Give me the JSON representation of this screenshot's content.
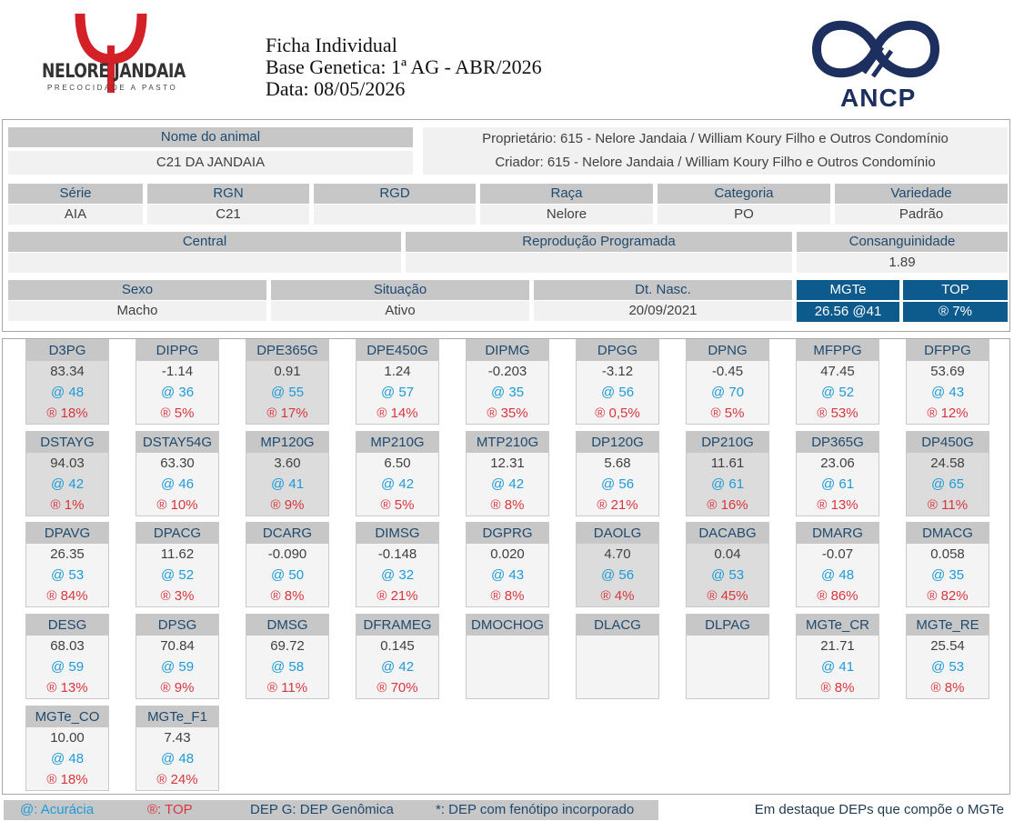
{
  "header": {
    "logo_left_text": "NELORE JANDAIA",
    "logo_left_slogan": "PRECOCIDADE A PASTO",
    "title": "Ficha Individual",
    "base": "Base Genetica: 1ª AG - ABR/2026",
    "date": "Data: 08/05/2026",
    "logo_right_text": "ANCP"
  },
  "animal": {
    "name_label": "Nome do animal",
    "name": "C21 DA JANDAIA",
    "owner": "Proprietário: 615 - Nelore Jandaia / William Koury Filho e Outros Condomínio",
    "breeder": "Criador: 615 - Nelore Jandaia / William Koury Filho e Outros Condomínio",
    "serie_label": "Série",
    "serie": "AIA",
    "rgn_label": "RGN",
    "rgn": "C21",
    "rgd_label": "RGD",
    "rgd": "",
    "raca_label": "Raça",
    "raca": "Nelore",
    "categoria_label": "Categoria",
    "categoria": "PO",
    "variedade_label": "Variedade",
    "variedade": "Padrão",
    "central_label": "Central",
    "central": "",
    "repro_label": "Reprodução Programada",
    "repro": "",
    "consang_label": "Consanguinidade",
    "consang": "1.89",
    "sexo_label": "Sexo",
    "sexo": "Macho",
    "situacao_label": "Situação",
    "situacao": "Ativo",
    "nasc_label": "Dt. Nasc.",
    "nasc": "20/09/2021",
    "mgte_label": "MGTe",
    "mgte": "26.56  @41",
    "top_label": "TOP",
    "top": "® 7%"
  },
  "deps": [
    {
      "name": "D3PG",
      "dep": "83.34",
      "acc": "@ 48",
      "top": "® 18%",
      "hl": true
    },
    {
      "name": "DIPPG",
      "dep": "-1.14",
      "acc": "@ 36",
      "top": "® 5%",
      "hl": false
    },
    {
      "name": "DPE365G",
      "dep": "0.91",
      "acc": "@ 55",
      "top": "® 17%",
      "hl": true
    },
    {
      "name": "DPE450G",
      "dep": "1.24",
      "acc": "@ 57",
      "top": "® 14%",
      "hl": false
    },
    {
      "name": "DIPMG",
      "dep": "-0.203",
      "acc": "@ 35",
      "top": "® 35%",
      "hl": false
    },
    {
      "name": "DPGG",
      "dep": "-3.12",
      "acc": "@ 56",
      "top": "® 0,5%",
      "hl": false
    },
    {
      "name": "DPNG",
      "dep": "-0.45",
      "acc": "@ 70",
      "top": "® 5%",
      "hl": false
    },
    {
      "name": "MFPPG",
      "dep": "47.45",
      "acc": "@ 52",
      "top": "® 53%",
      "hl": false
    },
    {
      "name": "DFPPG",
      "dep": "53.69",
      "acc": "@ 43",
      "top": "® 12%",
      "hl": false
    },
    {
      "name": "DSTAYG",
      "dep": "94.03",
      "acc": "@ 42",
      "top": "® 1%",
      "hl": true
    },
    {
      "name": "DSTAY54G",
      "dep": "63.30",
      "acc": "@ 46",
      "top": "® 10%",
      "hl": false
    },
    {
      "name": "MP120G",
      "dep": "3.60",
      "acc": "@ 41",
      "top": "® 9%",
      "hl": true
    },
    {
      "name": "MP210G",
      "dep": "6.50",
      "acc": "@ 42",
      "top": "® 5%",
      "hl": false
    },
    {
      "name": "MTP210G",
      "dep": "12.31",
      "acc": "@ 42",
      "top": "® 8%",
      "hl": false
    },
    {
      "name": "DP120G",
      "dep": "5.68",
      "acc": "@ 56",
      "top": "® 21%",
      "hl": false
    },
    {
      "name": "DP210G",
      "dep": "11.61",
      "acc": "@ 61",
      "top": "® 16%",
      "hl": true
    },
    {
      "name": "DP365G",
      "dep": "23.06",
      "acc": "@ 61",
      "top": "® 13%",
      "hl": false
    },
    {
      "name": "DP450G",
      "dep": "24.58",
      "acc": "@ 65",
      "top": "® 11%",
      "hl": true
    },
    {
      "name": "DPAVG",
      "dep": "26.35",
      "acc": "@ 53",
      "top": "® 84%",
      "hl": false
    },
    {
      "name": "DPACG",
      "dep": "11.62",
      "acc": "@ 52",
      "top": "® 3%",
      "hl": false
    },
    {
      "name": "DCARG",
      "dep": "-0.090",
      "acc": "@ 50",
      "top": "® 8%",
      "hl": false
    },
    {
      "name": "DIMSG",
      "dep": "-0.148",
      "acc": "@ 32",
      "top": "® 21%",
      "hl": false
    },
    {
      "name": "DGPRG",
      "dep": "0.020",
      "acc": "@ 43",
      "top": "® 8%",
      "hl": false
    },
    {
      "name": "DAOLG",
      "dep": "4.70",
      "acc": "@ 56",
      "top": "® 4%",
      "hl": true
    },
    {
      "name": "DACABG",
      "dep": "0.04",
      "acc": "@ 53",
      "top": "® 45%",
      "hl": true
    },
    {
      "name": "DMARG",
      "dep": "-0.07",
      "acc": "@ 48",
      "top": "® 86%",
      "hl": false
    },
    {
      "name": "DMACG",
      "dep": "0.058",
      "acc": "@ 35",
      "top": "® 82%",
      "hl": false
    },
    {
      "name": "DESG",
      "dep": "68.03",
      "acc": "@ 59",
      "top": "® 13%",
      "hl": false
    },
    {
      "name": "DPSG",
      "dep": "70.84",
      "acc": "@ 59",
      "top": "® 9%",
      "hl": false
    },
    {
      "name": "DMSG",
      "dep": "69.72",
      "acc": "@ 58",
      "top": "® 11%",
      "hl": false
    },
    {
      "name": "DFRAMEG",
      "dep": "0.145",
      "acc": "@ 42",
      "top": "® 70%",
      "hl": false
    },
    {
      "name": "DMOCHOG",
      "dep": "",
      "acc": "",
      "top": "",
      "hl": false
    },
    {
      "name": "DLACG",
      "dep": "",
      "acc": "",
      "top": "",
      "hl": false
    },
    {
      "name": "DLPAG",
      "dep": "",
      "acc": "",
      "top": "",
      "hl": false
    },
    {
      "name": "MGTe_CR",
      "dep": "21.71",
      "acc": "@ 41",
      "top": "® 8%",
      "hl": false
    },
    {
      "name": "MGTe_RE",
      "dep": "25.54",
      "acc": "@ 53",
      "top": "® 8%",
      "hl": false
    },
    {
      "name": "MGTe_CO",
      "dep": "10.00",
      "acc": "@ 48",
      "top": "® 18%",
      "hl": false
    },
    {
      "name": "MGTe_F1",
      "dep": "7.43",
      "acc": "@ 48",
      "top": "® 24%",
      "hl": false
    }
  ],
  "legend": {
    "acc": "@: Acurácia",
    "top": "®: TOP",
    "depg": "DEP G: DEP Genômica",
    "fen": "*: DEP com fenótipo incorporado",
    "note": "Em destaque DEPs que compõe o MGTe"
  },
  "colors": {
    "accent": "#0d5a8c",
    "accuracy": "#1e9bd7",
    "top": "#d9363e",
    "logo_red": "#d42027",
    "logo_navy": "#1c2f5e"
  }
}
